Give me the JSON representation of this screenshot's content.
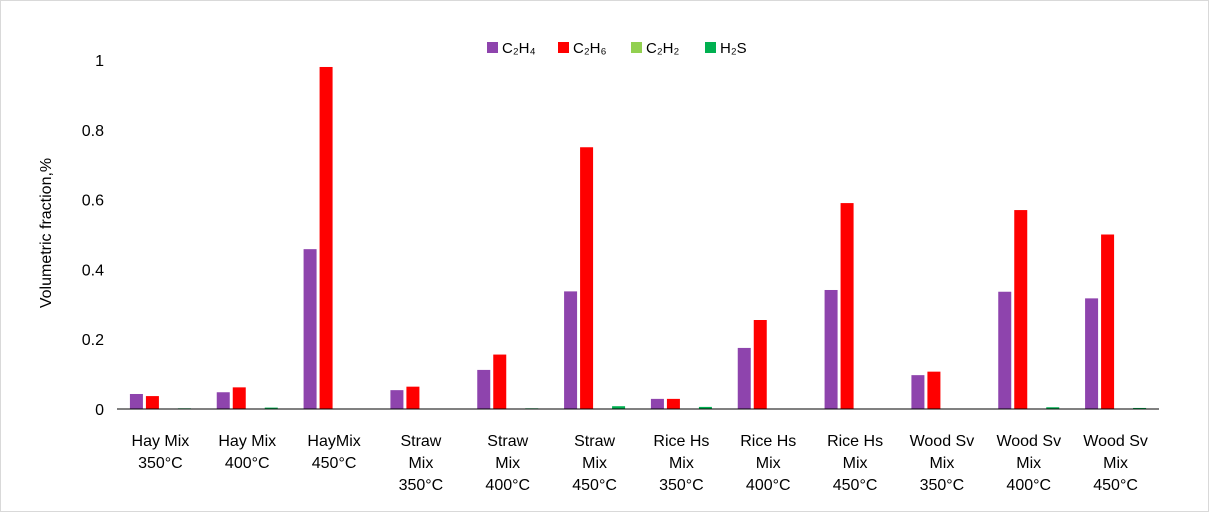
{
  "chart_data": {
    "type": "bar",
    "title": "",
    "ylabel": "Volumetric fraction,%",
    "xlabel": "",
    "ylim": [
      0,
      1
    ],
    "yticks": [
      "0",
      "0.2",
      "0.4",
      "0.6",
      "0.8",
      "1"
    ],
    "ytick_values": [
      0,
      0.2,
      0.4,
      0.6,
      0.8,
      1
    ],
    "grid": false,
    "legend_position": "top",
    "categories": [
      [
        "Hay Mix",
        "350°C"
      ],
      [
        "Hay Mix",
        "400°C"
      ],
      [
        "HayMix",
        "450°C"
      ],
      [
        "Straw",
        "Mix",
        "350°C"
      ],
      [
        "Straw",
        "Mix",
        "400°C"
      ],
      [
        "Straw",
        "Mix",
        "450°C"
      ],
      [
        "Rice Hs",
        "Mix",
        "350°C"
      ],
      [
        "Rice Hs",
        "Mix",
        "400°C"
      ],
      [
        "Rice Hs",
        "Mix",
        "450°C"
      ],
      [
        "Wood Sv",
        "Mix",
        "350°C"
      ],
      [
        "Wood Sv",
        "Mix",
        "400°C"
      ],
      [
        "Wood Sv",
        "Mix",
        "450°C"
      ]
    ],
    "series": [
      {
        "name": "C₂H₄",
        "color": "#8e44ad",
        "values": [
          0.043,
          0.048,
          0.458,
          0.054,
          0.112,
          0.337,
          0.029,
          0.175,
          0.341,
          0.097,
          0.336,
          0.317
        ]
      },
      {
        "name": "C₂H₆",
        "color": "#ff0000",
        "values": [
          0.037,
          0.062,
          0.98,
          0.064,
          0.156,
          0.75,
          0.029,
          0.255,
          0.59,
          0.107,
          0.57,
          0.5
        ]
      },
      {
        "name": "C₂H₂",
        "color": "#92d050",
        "values": [
          0,
          0,
          0,
          0,
          0,
          0,
          0,
          0,
          0,
          0,
          0,
          0
        ]
      },
      {
        "name": "H₂S",
        "color": "#00b050",
        "values": [
          0.002,
          0.004,
          0.001,
          0,
          0.002,
          0.008,
          0.006,
          0,
          0,
          0.001,
          0.005,
          0.003
        ]
      }
    ]
  }
}
